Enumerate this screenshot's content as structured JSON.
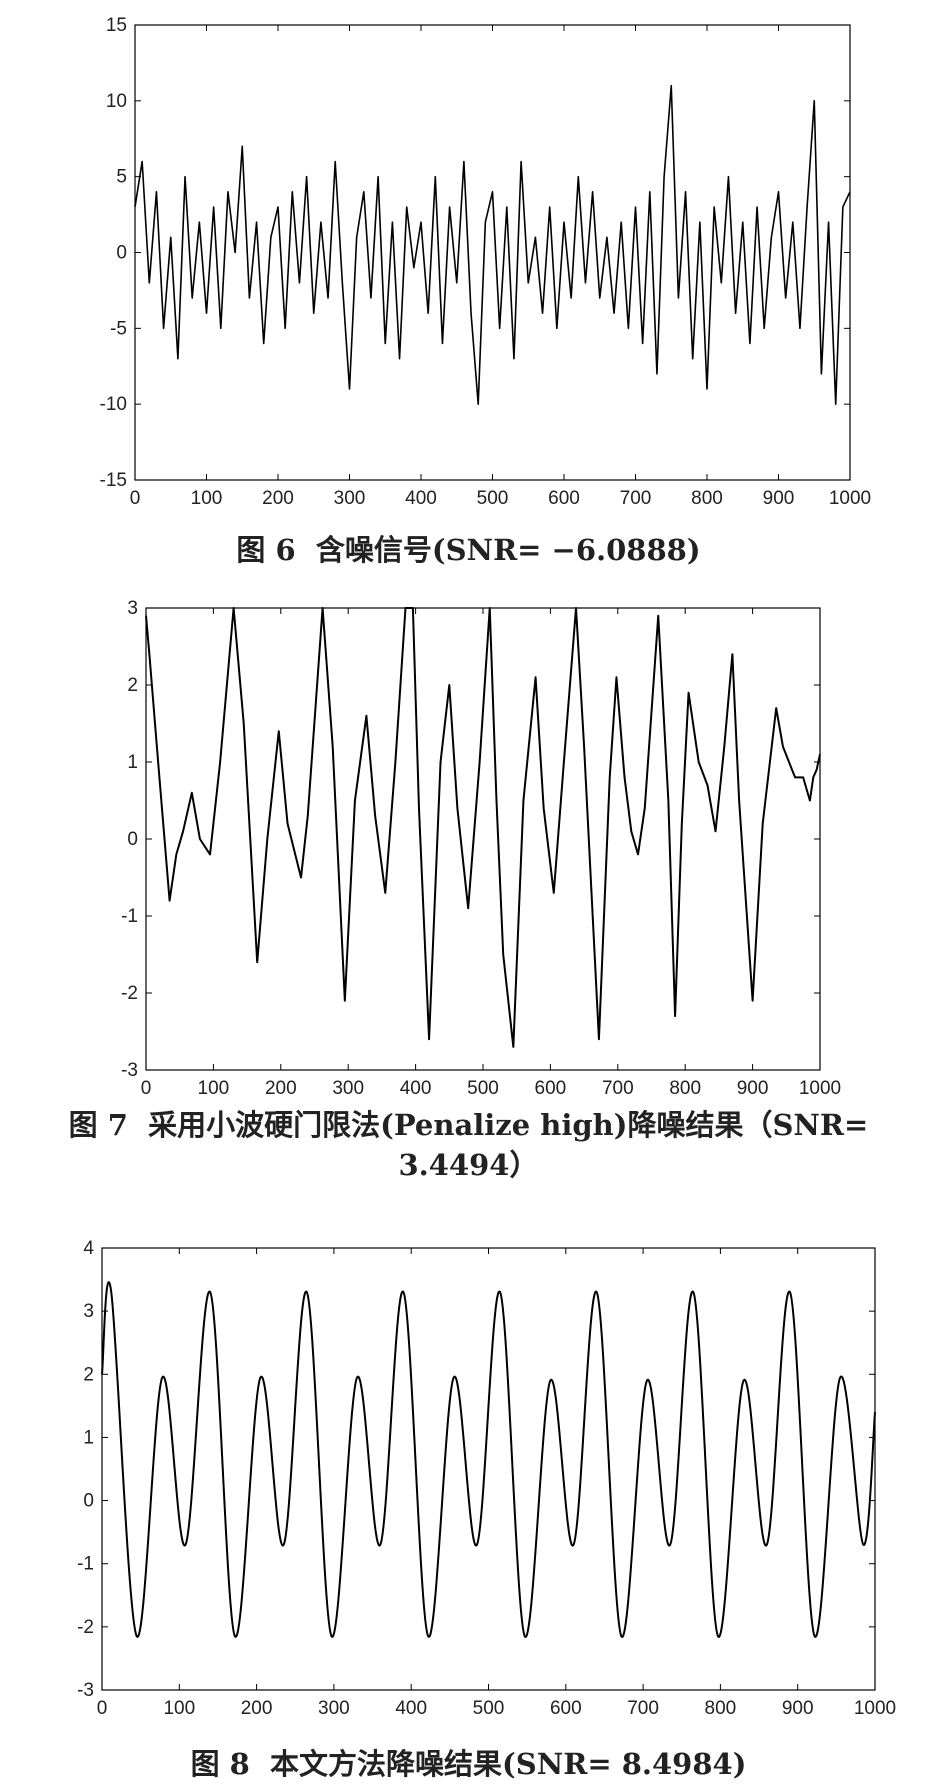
{
  "chart_data": [
    {
      "type": "line",
      "caption": {
        "fig": "图 6",
        "text": "含噪信号(SNR= −6.0888)"
      },
      "xlim": [
        0,
        1000
      ],
      "ylim": [
        -15,
        15
      ],
      "xticks": [
        0,
        100,
        200,
        300,
        400,
        500,
        600,
        700,
        800,
        900,
        1000
      ],
      "yticks": [
        -15,
        -10,
        -5,
        0,
        5,
        10,
        15
      ],
      "color": "#000000",
      "series": [
        {
          "x": [
            0,
            10,
            20,
            30,
            40,
            50,
            60,
            70,
            80,
            90,
            100,
            110,
            120,
            130,
            140,
            150,
            160,
            170,
            180,
            190,
            200,
            210,
            220,
            230,
            240,
            250,
            260,
            270,
            280,
            290,
            300,
            310,
            320,
            330,
            340,
            350,
            360,
            370,
            380,
            390,
            400,
            410,
            420,
            430,
            440,
            450,
            460,
            470,
            480,
            490,
            500,
            510,
            520,
            530,
            540,
            550,
            560,
            570,
            580,
            590,
            600,
            610,
            620,
            630,
            640,
            650,
            660,
            670,
            680,
            690,
            700,
            710,
            720,
            730,
            740,
            750,
            760,
            770,
            780,
            790,
            800,
            810,
            820,
            830,
            840,
            850,
            860,
            870,
            880,
            890,
            900,
            910,
            920,
            930,
            940,
            950,
            960,
            970,
            980,
            990,
            1000
          ],
          "values": [
            3,
            6,
            -2,
            4,
            -5,
            1,
            -7,
            5,
            -3,
            2,
            -4,
            3,
            -5,
            4,
            0,
            7,
            -3,
            2,
            -6,
            1,
            3,
            -5,
            4,
            -2,
            5,
            -4,
            2,
            -3,
            6,
            -2,
            -9,
            1,
            4,
            -3,
            5,
            -6,
            2,
            -7,
            3,
            -1,
            2,
            -4,
            5,
            -6,
            3,
            -2,
            6,
            -4,
            -10,
            2,
            4,
            -5,
            3,
            -7,
            6,
            -2,
            1,
            -4,
            3,
            -5,
            2,
            -3,
            5,
            -2,
            4,
            -3,
            1,
            -4,
            2,
            -5,
            3,
            -6,
            4,
            -8,
            5,
            11,
            -3,
            4,
            -7,
            2,
            -9,
            3,
            -2,
            5,
            -4,
            2,
            -6,
            3,
            -5,
            1,
            4,
            -3,
            2,
            -5,
            3,
            10,
            -8,
            2,
            -10,
            3,
            4
          ]
        }
      ]
    },
    {
      "type": "line",
      "caption": {
        "fig": "图 7",
        "text": "采用小波硬门限法(Penalize high)降噪结果（SNR=",
        "text2": "3.4494）"
      },
      "xlim": [
        0,
        1000
      ],
      "ylim": [
        -3,
        3
      ],
      "xticks": [
        0,
        100,
        200,
        300,
        400,
        500,
        600,
        700,
        800,
        900,
        1000
      ],
      "yticks": [
        -3,
        -2,
        -1,
        0,
        1,
        2,
        3
      ],
      "color": "#000000",
      "series": [
        {
          "x": [
            0,
            5,
            18,
            35,
            45,
            55,
            68,
            80,
            95,
            110,
            130,
            145,
            165,
            180,
            197,
            210,
            230,
            240,
            262,
            277,
            295,
            310,
            327,
            340,
            355,
            370,
            385,
            396,
            405,
            420,
            437,
            450,
            462,
            478,
            495,
            510,
            520,
            530,
            545,
            560,
            578,
            590,
            605,
            620,
            638,
            650,
            672,
            688,
            698,
            710,
            720,
            730,
            740,
            760,
            775,
            785,
            795,
            805,
            820,
            833,
            845,
            858,
            870,
            880,
            900,
            915,
            935,
            945,
            963,
            975,
            985,
            990,
            995,
            1000
          ],
          "values": [
            2.9,
            2.4,
            1,
            -0.8,
            -0.2,
            0.1,
            0.6,
            0,
            -0.2,
            1,
            3,
            1.5,
            -1.6,
            0,
            1.4,
            0.2,
            -0.5,
            0.3,
            3,
            1.2,
            -2.1,
            0.5,
            1.6,
            0.3,
            -0.7,
            1,
            3,
            3,
            0.4,
            -2.6,
            1,
            2,
            0.4,
            -0.9,
            1,
            3,
            0.5,
            -1.5,
            -2.7,
            0.5,
            2.1,
            0.4,
            -0.7,
            1,
            3,
            1.2,
            -2.6,
            0.8,
            2.1,
            0.8,
            0.1,
            -0.2,
            0.4,
            2.9,
            0.5,
            -2.3,
            0.2,
            1.9,
            1.0,
            0.7,
            0.1,
            1.2,
            2.4,
            0.5,
            -2.1,
            0.2,
            1.7,
            1.2,
            0.8,
            0.8,
            0.5,
            0.8,
            0.9,
            1.1
          ]
        }
      ]
    },
    {
      "type": "line",
      "caption": {
        "fig": "图 8",
        "text": "本文方法降噪结果(SNR= 8.4984)"
      },
      "xlim": [
        0,
        1000
      ],
      "ylim": [
        -3,
        4
      ],
      "xticks": [
        0,
        100,
        200,
        300,
        400,
        500,
        600,
        700,
        800,
        900,
        1000
      ],
      "yticks": [
        -3,
        -2,
        -1,
        0,
        1,
        2,
        3,
        4
      ],
      "color": "#000000",
      "series": [
        {
          "x": [
            0,
            12,
            45,
            78,
            108,
            140,
            172,
            205,
            235,
            265,
            297,
            330,
            360,
            390,
            422,
            455,
            485,
            515,
            547,
            580,
            610,
            640,
            672,
            705,
            735,
            765,
            797,
            830,
            860,
            890,
            922,
            955,
            985,
            1000
          ],
          "values": [
            2.0,
            3.3,
            -2.15,
            1.95,
            -0.7,
            3.3,
            -2.15,
            1.95,
            -0.7,
            3.3,
            -2.15,
            1.95,
            -0.7,
            3.3,
            -2.15,
            1.95,
            -0.7,
            3.3,
            -2.15,
            1.9,
            -0.7,
            3.3,
            -2.15,
            1.9,
            -0.7,
            3.3,
            -2.15,
            1.9,
            -0.7,
            3.3,
            -2.15,
            1.95,
            -0.7,
            1.4
          ]
        }
      ]
    }
  ]
}
